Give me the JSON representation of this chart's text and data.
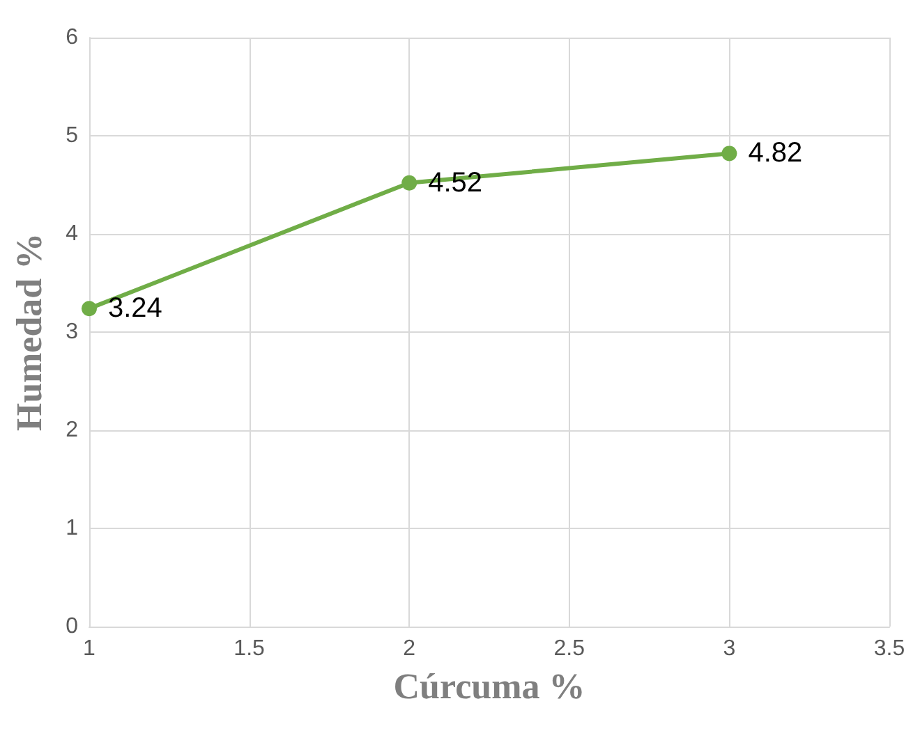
{
  "chart_data": {
    "type": "line",
    "xlabel": "Cúrcuma %",
    "ylabel": "Humedad %",
    "x": [
      1,
      2,
      3
    ],
    "series": [
      {
        "color": "#70ad47",
        "values": [
          3.24,
          4.52,
          4.82
        ]
      }
    ],
    "xlim": [
      1,
      3.5
    ],
    "xticks": [
      1,
      1.5,
      2,
      2.5,
      3,
      3.5
    ],
    "ylim": [
      0,
      6
    ],
    "yticks": [
      0,
      1,
      2,
      3,
      4,
      5,
      6
    ],
    "grid": true,
    "marker": "circle",
    "line_style": "solid",
    "data_labels": true
  }
}
